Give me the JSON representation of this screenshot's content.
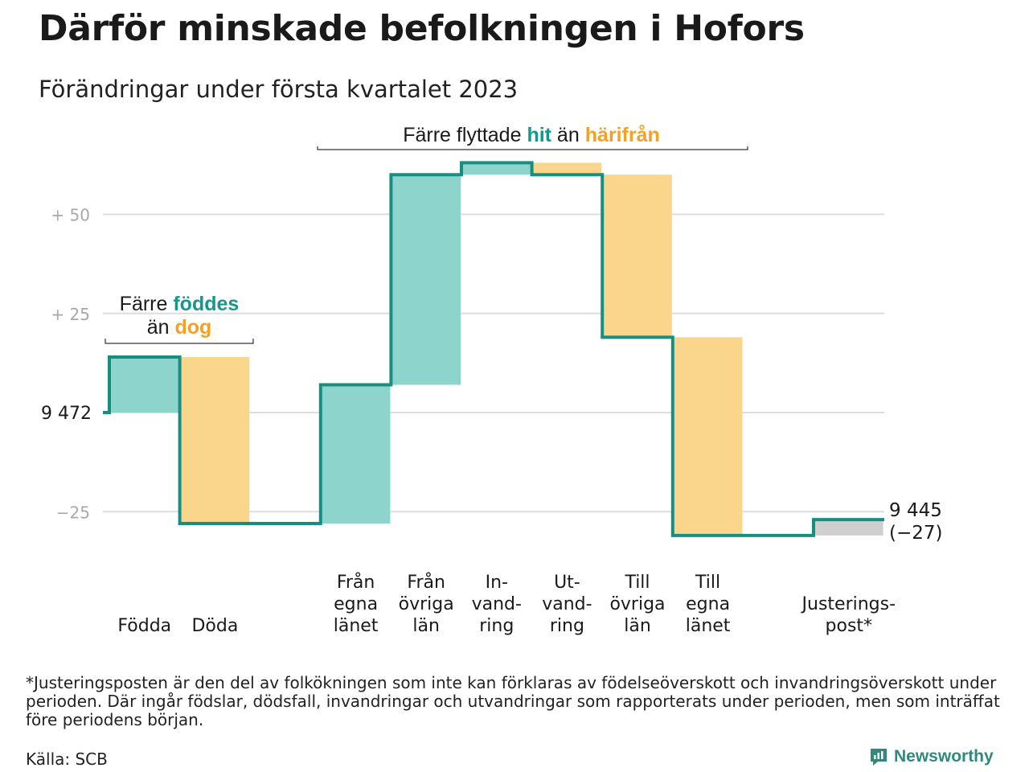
{
  "header": {
    "title": "Därför minskade befolkningen i Hofors",
    "subtitle": "Förändringar under första kvartalet 2023"
  },
  "colors": {
    "line": "#178f80",
    "inflow": "#8dd5cc",
    "outflow": "#fad58c",
    "adjustment": "#cfcfcf",
    "accent_teal": "#13988a",
    "accent_orange": "#f4a125",
    "grid": "#dddddd"
  },
  "chart_data": {
    "type": "waterfall",
    "start_value": 9472,
    "start_label": "9 472",
    "end_label_value": "9 445",
    "end_label_change": "(−27)",
    "ylim": [
      -32,
      64
    ],
    "yticks": [
      {
        "value": 50,
        "label": "+ 50"
      },
      {
        "value": 25,
        "label": "+ 25"
      },
      {
        "value": 0,
        "label": ""
      },
      {
        "value": -25,
        "label": "−25"
      }
    ],
    "steps": [
      {
        "label": [
          "Födda"
        ],
        "delta": 14,
        "kind": "inflow"
      },
      {
        "label": [
          "Döda"
        ],
        "delta": -42,
        "kind": "outflow"
      },
      {
        "label": [],
        "delta": 0,
        "kind": "gap"
      },
      {
        "label": [
          "Från",
          "egna",
          "länet"
        ],
        "delta": 35,
        "kind": "inflow"
      },
      {
        "label": [
          "Från",
          "övriga",
          "län"
        ],
        "delta": 53,
        "kind": "inflow"
      },
      {
        "label": [
          "In-",
          "vand-",
          "ring"
        ],
        "delta": 3,
        "kind": "inflow"
      },
      {
        "label": [
          "Ut-",
          "vand-",
          "ring"
        ],
        "delta": -3,
        "kind": "outflow"
      },
      {
        "label": [
          "Till",
          "övriga",
          "län"
        ],
        "delta": -41,
        "kind": "outflow"
      },
      {
        "label": [
          "Till",
          "egna",
          "länet"
        ],
        "delta": -50,
        "kind": "outflow"
      },
      {
        "label": [],
        "delta": 0,
        "kind": "gap"
      },
      {
        "label": [
          "Justerings-",
          "post*"
        ],
        "delta": 4,
        "kind": "adjustment"
      }
    ],
    "annotations": {
      "births_line1_prefix": "Färre ",
      "births_line1_highlight": "föddes",
      "births_line2_prefix": "än ",
      "births_line2_highlight": "dog",
      "migration_prefix": "Färre flyttade ",
      "migration_highlight1": "hit",
      "migration_middle": " än ",
      "migration_highlight2": "härifrån"
    }
  },
  "footnote": "*Justeringsposten är den del av folkökningen som inte kan förklaras av födelseöverskott och invandringsöverskott under perioden. Där ingår födslar, dödsfall, invandringar och utvandringar som rapporterats under perioden, men som inträffat före periodens början.",
  "source": "Källa: SCB",
  "brand": {
    "name": "Newsworthy",
    "icon": "newsworthy-logo-icon"
  }
}
